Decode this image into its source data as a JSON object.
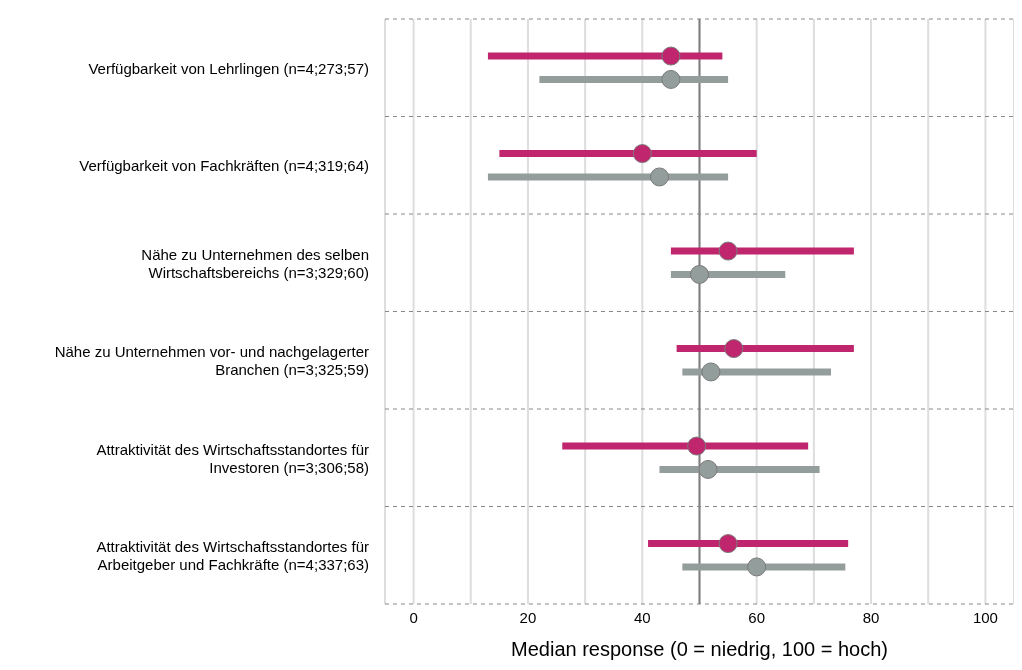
{
  "chart_data": {
    "type": "scatter",
    "orientation": "horizontal",
    "categories": [
      "Verfügbarkeit von Lehrlingen (n=4;273;57)",
      "Verfügbarkeit von Fachkräften (n=4;319;64)",
      "Nähe zu Unternehmen des selben Wirtschaftsbereichs (n=3;329;60)",
      "Nähe zu Unternehmen vor- und nachgelagerter Branchen (n=3;325;59)",
      "Attraktivität des Wirtschaftsstandortes für Investoren (n=3;306;58)",
      "Attraktivität des Wirtschaftsstandortes für Arbeitgeber und Fachkräfte (n=4;337;63)"
    ],
    "series": [
      {
        "color": "#c0266e",
        "values": [
          45,
          40,
          55,
          56,
          49.5,
          55
        ],
        "errors": [
          [
            13,
            54
          ],
          [
            15,
            60
          ],
          [
            45,
            77
          ],
          [
            46,
            77
          ],
          [
            26,
            69
          ],
          [
            41,
            76
          ]
        ]
      },
      {
        "color": "#939d9c",
        "values": [
          45,
          43,
          50,
          52,
          51.5,
          60
        ],
        "errors": [
          [
            22,
            55
          ],
          [
            13,
            55
          ],
          [
            45,
            65
          ],
          [
            47,
            73
          ],
          [
            43,
            71
          ],
          [
            47,
            75.5
          ]
        ]
      }
    ],
    "xlim": [
      -5,
      105
    ],
    "xticks": [
      0,
      {
        "value": 10,
        "label": null
      },
      20,
      {
        "value": 30,
        "label": null
      },
      40,
      {
        "value": 50,
        "label": null
      },
      60,
      {
        "value": 70,
        "label": null
      },
      80,
      {
        "value": 90,
        "label": null
      },
      100
    ],
    "xlabel": "Median response (0 = niedrig, 100 = hoch)",
    "grid": true,
    "marker": "circle",
    "ref_lines": [
      {
        "axis": "x",
        "value": 50,
        "color": "#7f7f7f"
      }
    ]
  }
}
